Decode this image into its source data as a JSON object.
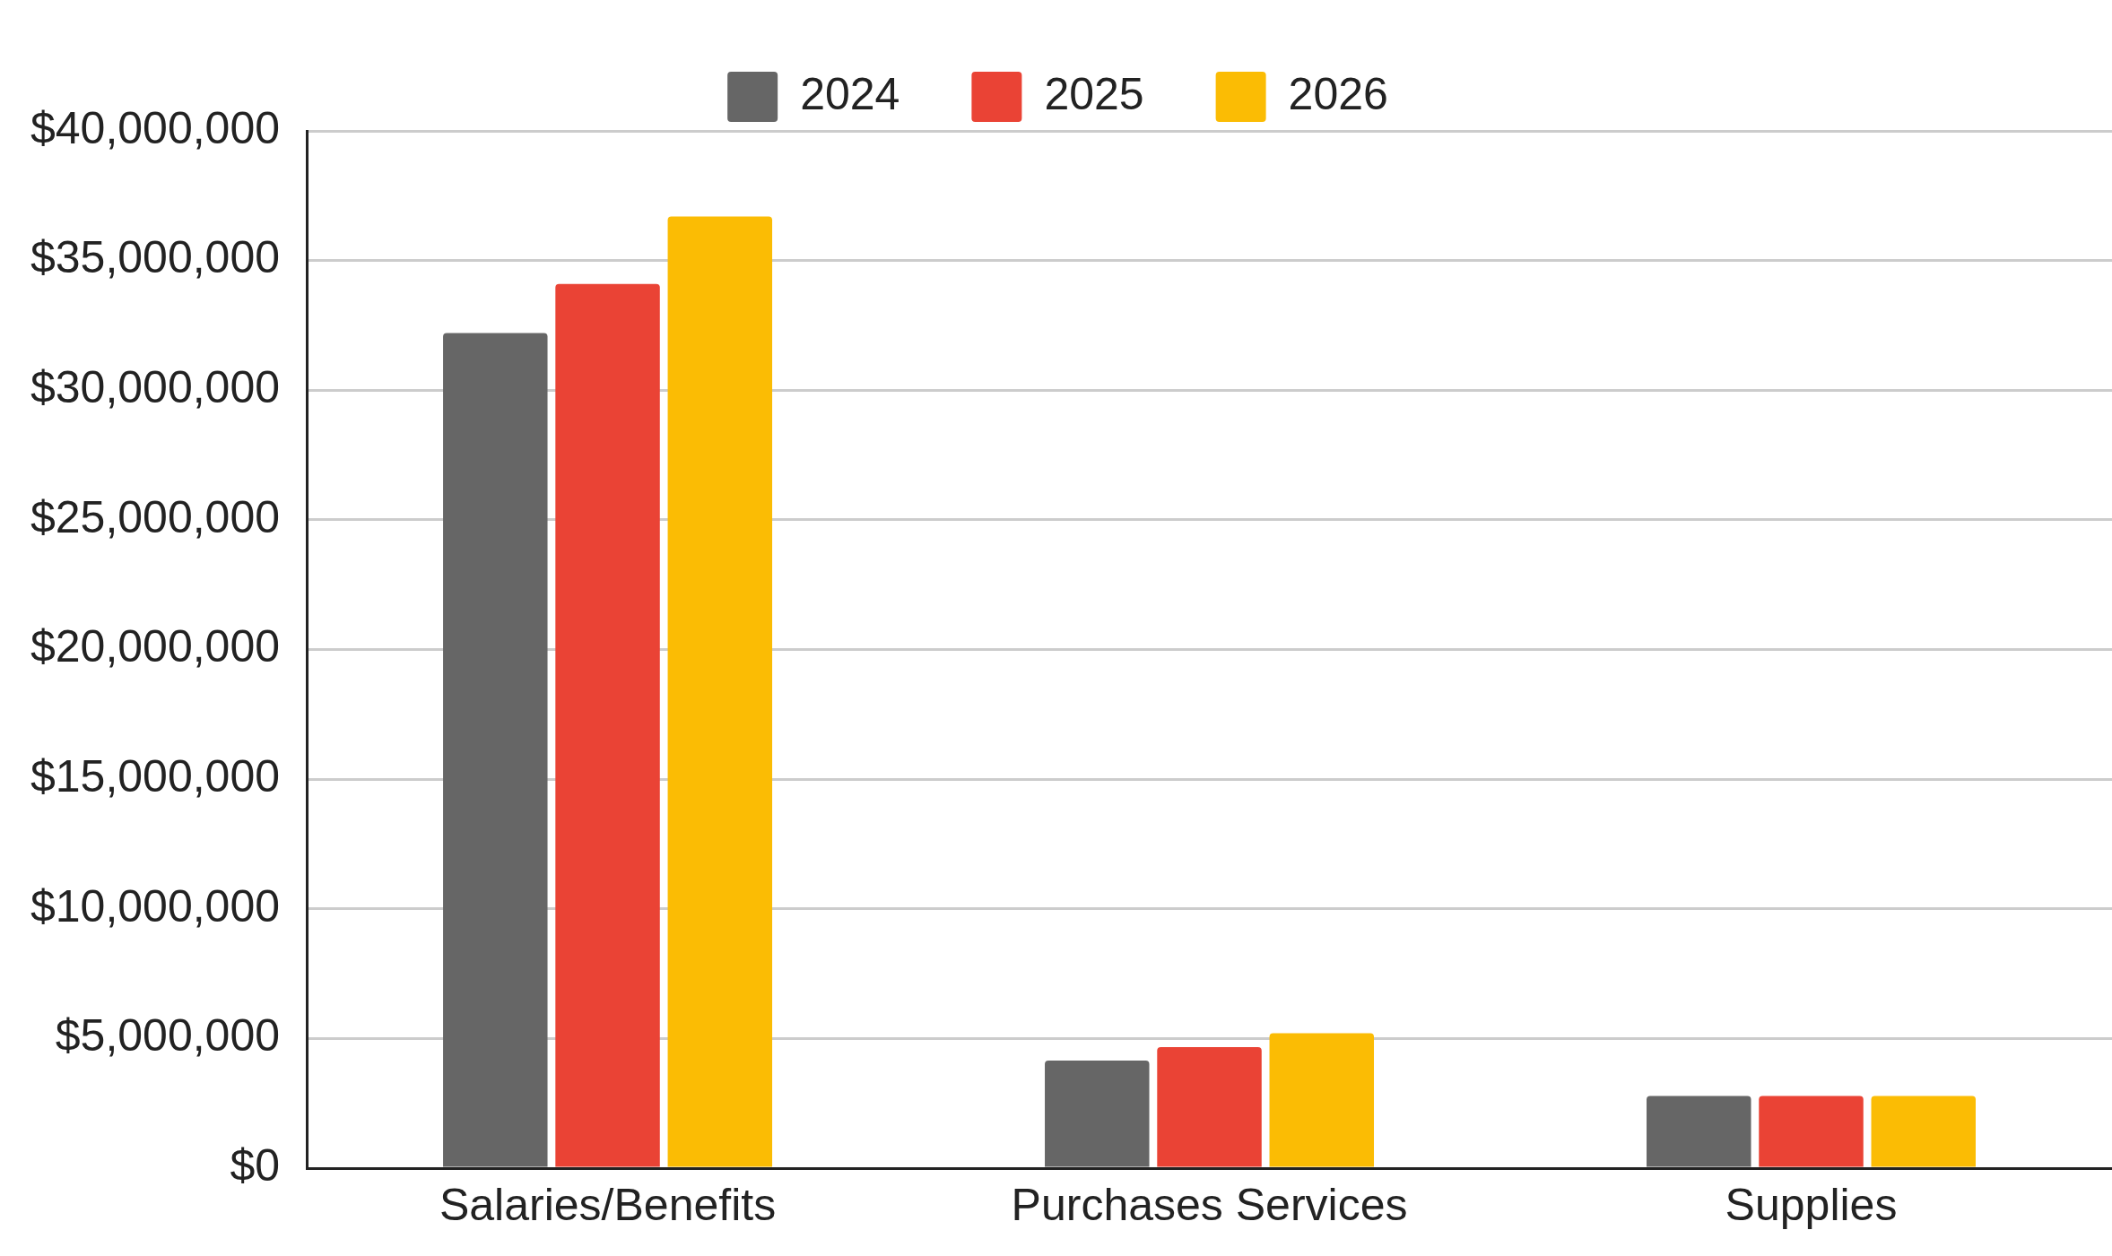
{
  "chart_data": {
    "type": "bar",
    "categories": [
      "Salaries/Benefits",
      "Purchases Services",
      "Supplies"
    ],
    "series": [
      {
        "name": "2024",
        "color": "#666666",
        "values": [
          32200000,
          4150000,
          2780000
        ]
      },
      {
        "name": "2025",
        "color": "#ea4335",
        "values": [
          34100000,
          4670000,
          2780000
        ]
      },
      {
        "name": "2026",
        "color": "#fbbc04",
        "values": [
          36700000,
          5200000,
          2780000
        ]
      }
    ],
    "ylim": [
      0,
      40000000
    ],
    "yticks": [
      {
        "value": 0,
        "label": "$0"
      },
      {
        "value": 5000000,
        "label": "$5,000,000"
      },
      {
        "value": 10000000,
        "label": "$10,000,000"
      },
      {
        "value": 15000000,
        "label": "$15,000,000"
      },
      {
        "value": 20000000,
        "label": "$20,000,000"
      },
      {
        "value": 25000000,
        "label": "$25,000,000"
      },
      {
        "value": 30000000,
        "label": "$30,000,000"
      },
      {
        "value": 35000000,
        "label": "$35,000,000"
      },
      {
        "value": 40000000,
        "label": "$40,000,000"
      }
    ],
    "grid": "y",
    "legend": "top"
  }
}
